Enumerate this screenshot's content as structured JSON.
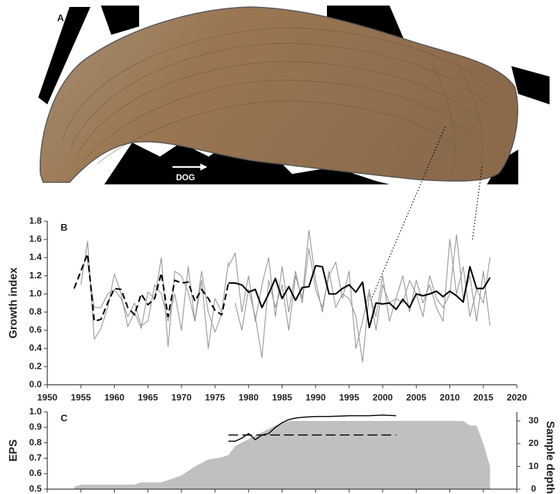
{
  "photo": {
    "panel_label": "A",
    "arrow_label": "DOG"
  },
  "chart_data": [
    {
      "type": "line",
      "panel_label": "B",
      "ylabel": "Growth index",
      "xlim": [
        1950,
        2020
      ],
      "xticks": [
        1950,
        1955,
        1960,
        1965,
        1970,
        1975,
        1980,
        1985,
        1990,
        1995,
        2000,
        2005,
        2010,
        2015,
        2020
      ],
      "ylim": [
        0,
        1.8
      ],
      "yticks": [
        {
          "value": 0,
          "label": "0.0"
        },
        0.2,
        0.4,
        0.6,
        0.8,
        {
          "value": 1,
          "label": "1.0"
        },
        1.2,
        1.4,
        1.6,
        1.8
      ],
      "grid": false,
      "x": [
        1954,
        1955,
        1956,
        1957,
        1958,
        1959,
        1960,
        1961,
        1962,
        1963,
        1964,
        1965,
        1966,
        1967,
        1968,
        1969,
        1970,
        1971,
        1972,
        1973,
        1974,
        1975,
        1976,
        1977,
        1978,
        1979,
        1980,
        1981,
        1982,
        1983,
        1984,
        1985,
        1986,
        1987,
        1988,
        1989,
        1990,
        1991,
        1992,
        1993,
        1994,
        1995,
        1996,
        1997,
        1998,
        1999,
        2000,
        2001,
        2002,
        2003,
        2004,
        2005,
        2006,
        2007,
        2008,
        2009,
        2010,
        2011,
        2012,
        2013,
        2014,
        2015,
        2016
      ],
      "series": [
        {
          "color": "#999999",
          "width": 1.2,
          "x": [
            1955,
            1956,
            1957,
            1958,
            1959,
            1960,
            1961,
            1962,
            1963,
            1964,
            1965,
            1966,
            1967,
            1968,
            1969,
            1970,
            1971,
            1972,
            1973,
            1974,
            1975,
            1976
          ],
          "values": [
            1.1,
            1.58,
            0.5,
            0.62,
            0.85,
            1.22,
            1.0,
            0.64,
            0.8,
            0.62,
            1.02,
            0.95,
            1.4,
            0.42,
            1.25,
            1.2,
            1.02,
            0.7,
            1.25,
            0.8,
            0.58,
            0.78
          ]
        },
        {
          "color": "#999999",
          "width": 1.2,
          "x": [
            1956,
            1957,
            1958,
            1959,
            1960,
            1961,
            1962,
            1963,
            1964,
            1965,
            1966,
            1967,
            1968,
            1969,
            1970,
            1971,
            1972,
            1973,
            1974,
            1975,
            1976,
            1977
          ],
          "values": [
            1.35,
            0.85,
            0.85,
            1.0,
            1.05,
            0.95,
            0.75,
            0.9,
            0.65,
            0.7,
            1.1,
            1.0,
            0.7,
            1.0,
            0.6,
            1.3,
            0.7,
            1.15,
            0.4,
            0.95,
            0.8,
            1.35
          ]
        },
        {
          "color": "#999999",
          "width": 1.2,
          "x": [
            1977,
            1978,
            1979,
            1980,
            1981,
            1982,
            1983,
            1984,
            1985,
            1986,
            1987,
            1988,
            1989,
            1990,
            1991,
            1992,
            1993,
            1994,
            1995,
            1996,
            1997,
            1998,
            1999,
            2000,
            2001,
            2002,
            2003,
            2004,
            2005,
            2006,
            2007,
            2008,
            2009,
            2010,
            2011,
            2012,
            2013,
            2014,
            2015,
            2016
          ],
          "values": [
            1.3,
            1.45,
            0.8,
            1.2,
            0.7,
            1.1,
            1.4,
            0.75,
            1.3,
            0.8,
            1.25,
            0.9,
            1.5,
            1.05,
            0.85,
            1.2,
            1.35,
            0.95,
            1.25,
            0.4,
            0.7,
            1.05,
            0.6,
            1.1,
            0.9,
            0.95,
            1.2,
            0.8,
            1.15,
            0.9,
            1.1,
            0.85,
            0.7,
            1.6,
            1.0,
            1.3,
            0.75,
            1.05,
            0.9,
            1.4
          ]
        },
        {
          "color": "#999999",
          "width": 1.2,
          "x": [
            1978,
            1979,
            1980,
            1981,
            1982,
            1983,
            1984,
            1985,
            1986,
            1987,
            1988,
            1989,
            1990,
            1991,
            1992,
            1993,
            1994,
            1995,
            1996,
            1997,
            1998,
            1999,
            2000,
            2001,
            2002,
            2003,
            2004,
            2005,
            2006,
            2007,
            2008,
            2009,
            2010,
            2011,
            2012,
            2013,
            2014,
            2015,
            2016
          ],
          "values": [
            0.9,
            0.6,
            1.05,
            0.75,
            0.3,
            1.15,
            0.85,
            1.1,
            0.6,
            1.2,
            0.95,
            1.7,
            1.15,
            0.8,
            1.25,
            0.85,
            1.0,
            0.95,
            0.75,
            0.25,
            1.0,
            0.75,
            1.2,
            0.7,
            0.95,
            0.9,
            1.15,
            1.0,
            0.75,
            1.2,
            0.95,
            0.85,
            1.0,
            1.65,
            0.95,
            1.2,
            0.7,
            1.25,
            0.65
          ]
        },
        {
          "color": "#000000",
          "width": 2.2,
          "dash": true,
          "values": [
            1.06,
            1.25,
            1.44,
            0.7,
            0.72,
            0.9,
            1.06,
            1.05,
            0.85,
            0.77,
            1.0,
            0.88,
            0.95,
            1.23,
            0.75,
            1.15,
            1.12,
            1.13,
            0.92,
            1.05,
            0.95,
            0.82,
            0.77,
            1.12,
            null,
            null,
            null,
            null,
            null,
            null,
            null,
            null,
            null,
            null,
            null,
            null,
            null,
            null,
            null,
            null,
            null,
            null,
            null,
            null,
            null,
            null,
            null,
            null,
            null,
            null,
            null,
            null,
            null,
            null,
            null,
            null,
            null,
            null,
            null,
            null,
            null,
            null,
            null
          ]
        },
        {
          "color": "#000000",
          "width": 2.2,
          "values": [
            null,
            null,
            null,
            null,
            null,
            null,
            null,
            null,
            null,
            null,
            null,
            null,
            null,
            null,
            null,
            null,
            null,
            null,
            null,
            null,
            null,
            null,
            null,
            1.12,
            1.12,
            1.1,
            1.02,
            1.05,
            0.85,
            1.0,
            1.17,
            0.95,
            1.08,
            0.93,
            1.07,
            1.08,
            1.31,
            1.3,
            1.0,
            1.0,
            1.06,
            1.1,
            1.02,
            1.13,
            0.63,
            0.9,
            0.89,
            0.9,
            0.83,
            0.94,
            0.85,
            1.0,
            0.98,
            1.0,
            1.03,
            0.97,
            1.03,
            0.98,
            0.91,
            1.3,
            1.06,
            1.06,
            1.18
          ]
        }
      ]
    },
    {
      "type": "line",
      "panel_label": "C",
      "ylabel": "EPS",
      "y2label": "Sample depth",
      "xlim": [
        1950,
        2020
      ],
      "xticks": [
        1950,
        1955,
        1960,
        1965,
        1970,
        1975,
        1980,
        1985,
        1990,
        1995,
        2000,
        2005,
        2010,
        2015,
        2020
      ],
      "xtick_labels": false,
      "ylim": [
        0.5,
        1.0
      ],
      "yticks": [
        0.5,
        0.6,
        0.7,
        0.8,
        0.9,
        {
          "value": 1,
          "label": "1.0"
        }
      ],
      "y2lim": [
        0,
        34
      ],
      "y2ticks": [
        0,
        10,
        20,
        30
      ],
      "grid": false,
      "series": [
        {
          "color": "#c0c0c0",
          "area": true,
          "axis": "y2",
          "x": [
            1954,
            1955,
            1963,
            1964,
            1967,
            1968,
            1970,
            1972,
            1974,
            1976,
            1977,
            1978,
            1980,
            1982,
            1984,
            1986,
            1988,
            2012,
            2013,
            2014,
            2015,
            2016
          ],
          "values": [
            1,
            2,
            2,
            3,
            3,
            4,
            6,
            10,
            13,
            14,
            15,
            19,
            22,
            25,
            28,
            30,
            30,
            30,
            28,
            28,
            20,
            10
          ]
        },
        {
          "color": "#000000",
          "width": 1.5,
          "x": [
            1977,
            1978,
            1979,
            1980,
            1981,
            1982,
            1983,
            1984,
            1985,
            1986,
            1987,
            1988,
            1990,
            1992,
            1995,
            1998,
            2000,
            2002
          ],
          "values": [
            0.81,
            0.81,
            0.83,
            0.86,
            0.82,
            0.85,
            0.86,
            0.9,
            0.93,
            0.95,
            0.96,
            0.965,
            0.97,
            0.97,
            0.975,
            0.975,
            0.98,
            0.975
          ]
        },
        {
          "color": "#000000",
          "width": 1.5,
          "dash": true,
          "x": [
            1977,
            2002
          ],
          "values": [
            0.85,
            0.85
          ]
        }
      ]
    }
  ]
}
